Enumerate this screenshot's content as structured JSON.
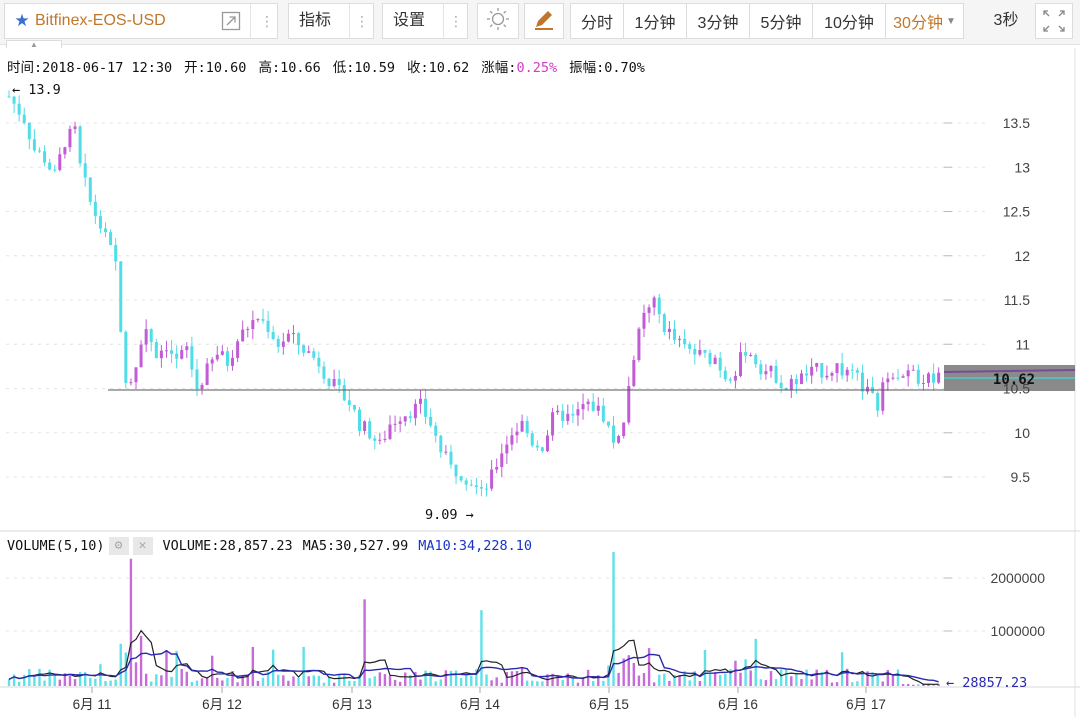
{
  "toolbar": {
    "symbol": "Bitfinex-EOS-USD",
    "indicator_label": "指标",
    "settings_label": "设置",
    "periods": [
      {
        "label": "分时",
        "width": 54
      },
      {
        "label": "1分钟",
        "width": 63
      },
      {
        "label": "3分钟",
        "width": 63
      },
      {
        "label": "5分钟",
        "width": 63
      },
      {
        "label": "10分钟",
        "width": 73
      },
      {
        "label": "30分钟",
        "width": 78,
        "active": true
      }
    ],
    "refresh": "3秒"
  },
  "info": {
    "time": "时间:2018-06-17 12:30",
    "open": "开:10.60",
    "high": "高:10.66",
    "low": "低:10.59",
    "close": "收:10.62",
    "change_label": "涨幅:",
    "change_value": "0.25%",
    "amplitude": "振幅:0.70%"
  },
  "volume_info": {
    "title": "VOLUME(5,10)",
    "volume": "VOLUME:28,857.23",
    "ma5": "MA5:30,527.99",
    "ma10": "MA10:34,228.10"
  },
  "colors": {
    "up": "#c25bd6",
    "down": "#4fdde6",
    "ma5": "#222222",
    "ma10": "#2a2ab0",
    "accent": "#c0762a",
    "star": "#3a6fd0"
  },
  "chart_data": {
    "type": "candlestick",
    "price_axis": {
      "ticks": [
        "13.5",
        "13",
        "12.5",
        "12",
        "11.5",
        "11",
        "10.5",
        "10",
        "9.5"
      ],
      "range": [
        9.0,
        13.95
      ]
    },
    "volume_axis": {
      "ticks": [
        "2000000",
        "1000000"
      ],
      "range": [
        0,
        2400000
      ]
    },
    "x_labels": [
      "6月 11",
      "6月 12",
      "6月 13",
      "6月 14",
      "6月 15",
      "6月 16",
      "6月 17"
    ],
    "markers": {
      "high": "← 13.9",
      "low": "9.09 →",
      "last_price": "10.62",
      "last_volume": "← 28857.23"
    },
    "reference_line": 10.5,
    "path": [
      [
        0,
        13.8
      ],
      [
        3,
        13.55
      ],
      [
        5,
        13.2
      ],
      [
        7,
        13.1
      ],
      [
        9,
        12.9
      ],
      [
        11,
        13.3
      ],
      [
        13,
        13.4
      ],
      [
        14,
        13.0
      ],
      [
        16,
        12.6
      ],
      [
        19,
        12.2
      ],
      [
        21,
        11.9
      ],
      [
        23,
        10.5
      ],
      [
        25,
        10.8
      ],
      [
        27,
        11.2
      ],
      [
        29,
        10.9
      ],
      [
        31,
        11.0
      ],
      [
        33,
        10.8
      ],
      [
        35,
        10.95
      ],
      [
        37,
        10.5
      ],
      [
        39,
        10.7
      ],
      [
        41,
        10.9
      ],
      [
        43,
        10.8
      ],
      [
        45,
        11.05
      ],
      [
        47,
        11.2
      ],
      [
        49,
        11.3
      ],
      [
        51,
        11.2
      ],
      [
        53,
        11.0
      ],
      [
        55,
        11.1
      ],
      [
        57,
        11.0
      ],
      [
        59,
        10.9
      ],
      [
        61,
        10.8
      ],
      [
        63,
        10.6
      ],
      [
        65,
        10.45
      ],
      [
        67,
        10.35
      ],
      [
        69,
        10.1
      ],
      [
        71,
        10.0
      ],
      [
        73,
        9.85
      ],
      [
        75,
        10.1
      ],
      [
        77,
        10.2
      ],
      [
        79,
        10.25
      ],
      [
        81,
        10.3
      ],
      [
        83,
        10.1
      ],
      [
        85,
        9.8
      ],
      [
        87,
        9.6
      ],
      [
        89,
        9.55
      ],
      [
        91,
        9.45
      ],
      [
        93,
        9.3
      ],
      [
        95,
        9.5
      ],
      [
        97,
        9.8
      ],
      [
        99,
        10.0
      ],
      [
        101,
        10.1
      ],
      [
        103,
        9.9
      ],
      [
        105,
        9.85
      ],
      [
        107,
        10.15
      ],
      [
        109,
        10.2
      ],
      [
        111,
        10.15
      ],
      [
        113,
        10.3
      ],
      [
        115,
        10.3
      ],
      [
        117,
        10.2
      ],
      [
        119,
        9.9
      ],
      [
        121,
        10.1
      ],
      [
        123,
        10.9
      ],
      [
        125,
        11.3
      ],
      [
        127,
        11.45
      ],
      [
        129,
        11.2
      ],
      [
        131,
        11.05
      ],
      [
        133,
        10.95
      ],
      [
        135,
        10.9
      ],
      [
        137,
        10.85
      ],
      [
        139,
        10.85
      ],
      [
        141,
        10.65
      ],
      [
        143,
        10.7
      ],
      [
        145,
        10.95
      ],
      [
        147,
        10.8
      ],
      [
        149,
        10.7
      ],
      [
        151,
        10.65
      ],
      [
        153,
        10.5
      ],
      [
        155,
        10.6
      ],
      [
        157,
        10.65
      ],
      [
        159,
        10.7
      ],
      [
        161,
        10.7
      ],
      [
        163,
        10.75
      ],
      [
        165,
        10.65
      ],
      [
        167,
        10.6
      ],
      [
        169,
        10.45
      ],
      [
        171,
        10.3
      ],
      [
        173,
        10.7
      ],
      [
        175,
        10.7
      ],
      [
        177,
        10.65
      ],
      [
        179,
        10.6
      ],
      [
        181,
        10.62
      ],
      [
        183,
        10.62
      ]
    ]
  }
}
